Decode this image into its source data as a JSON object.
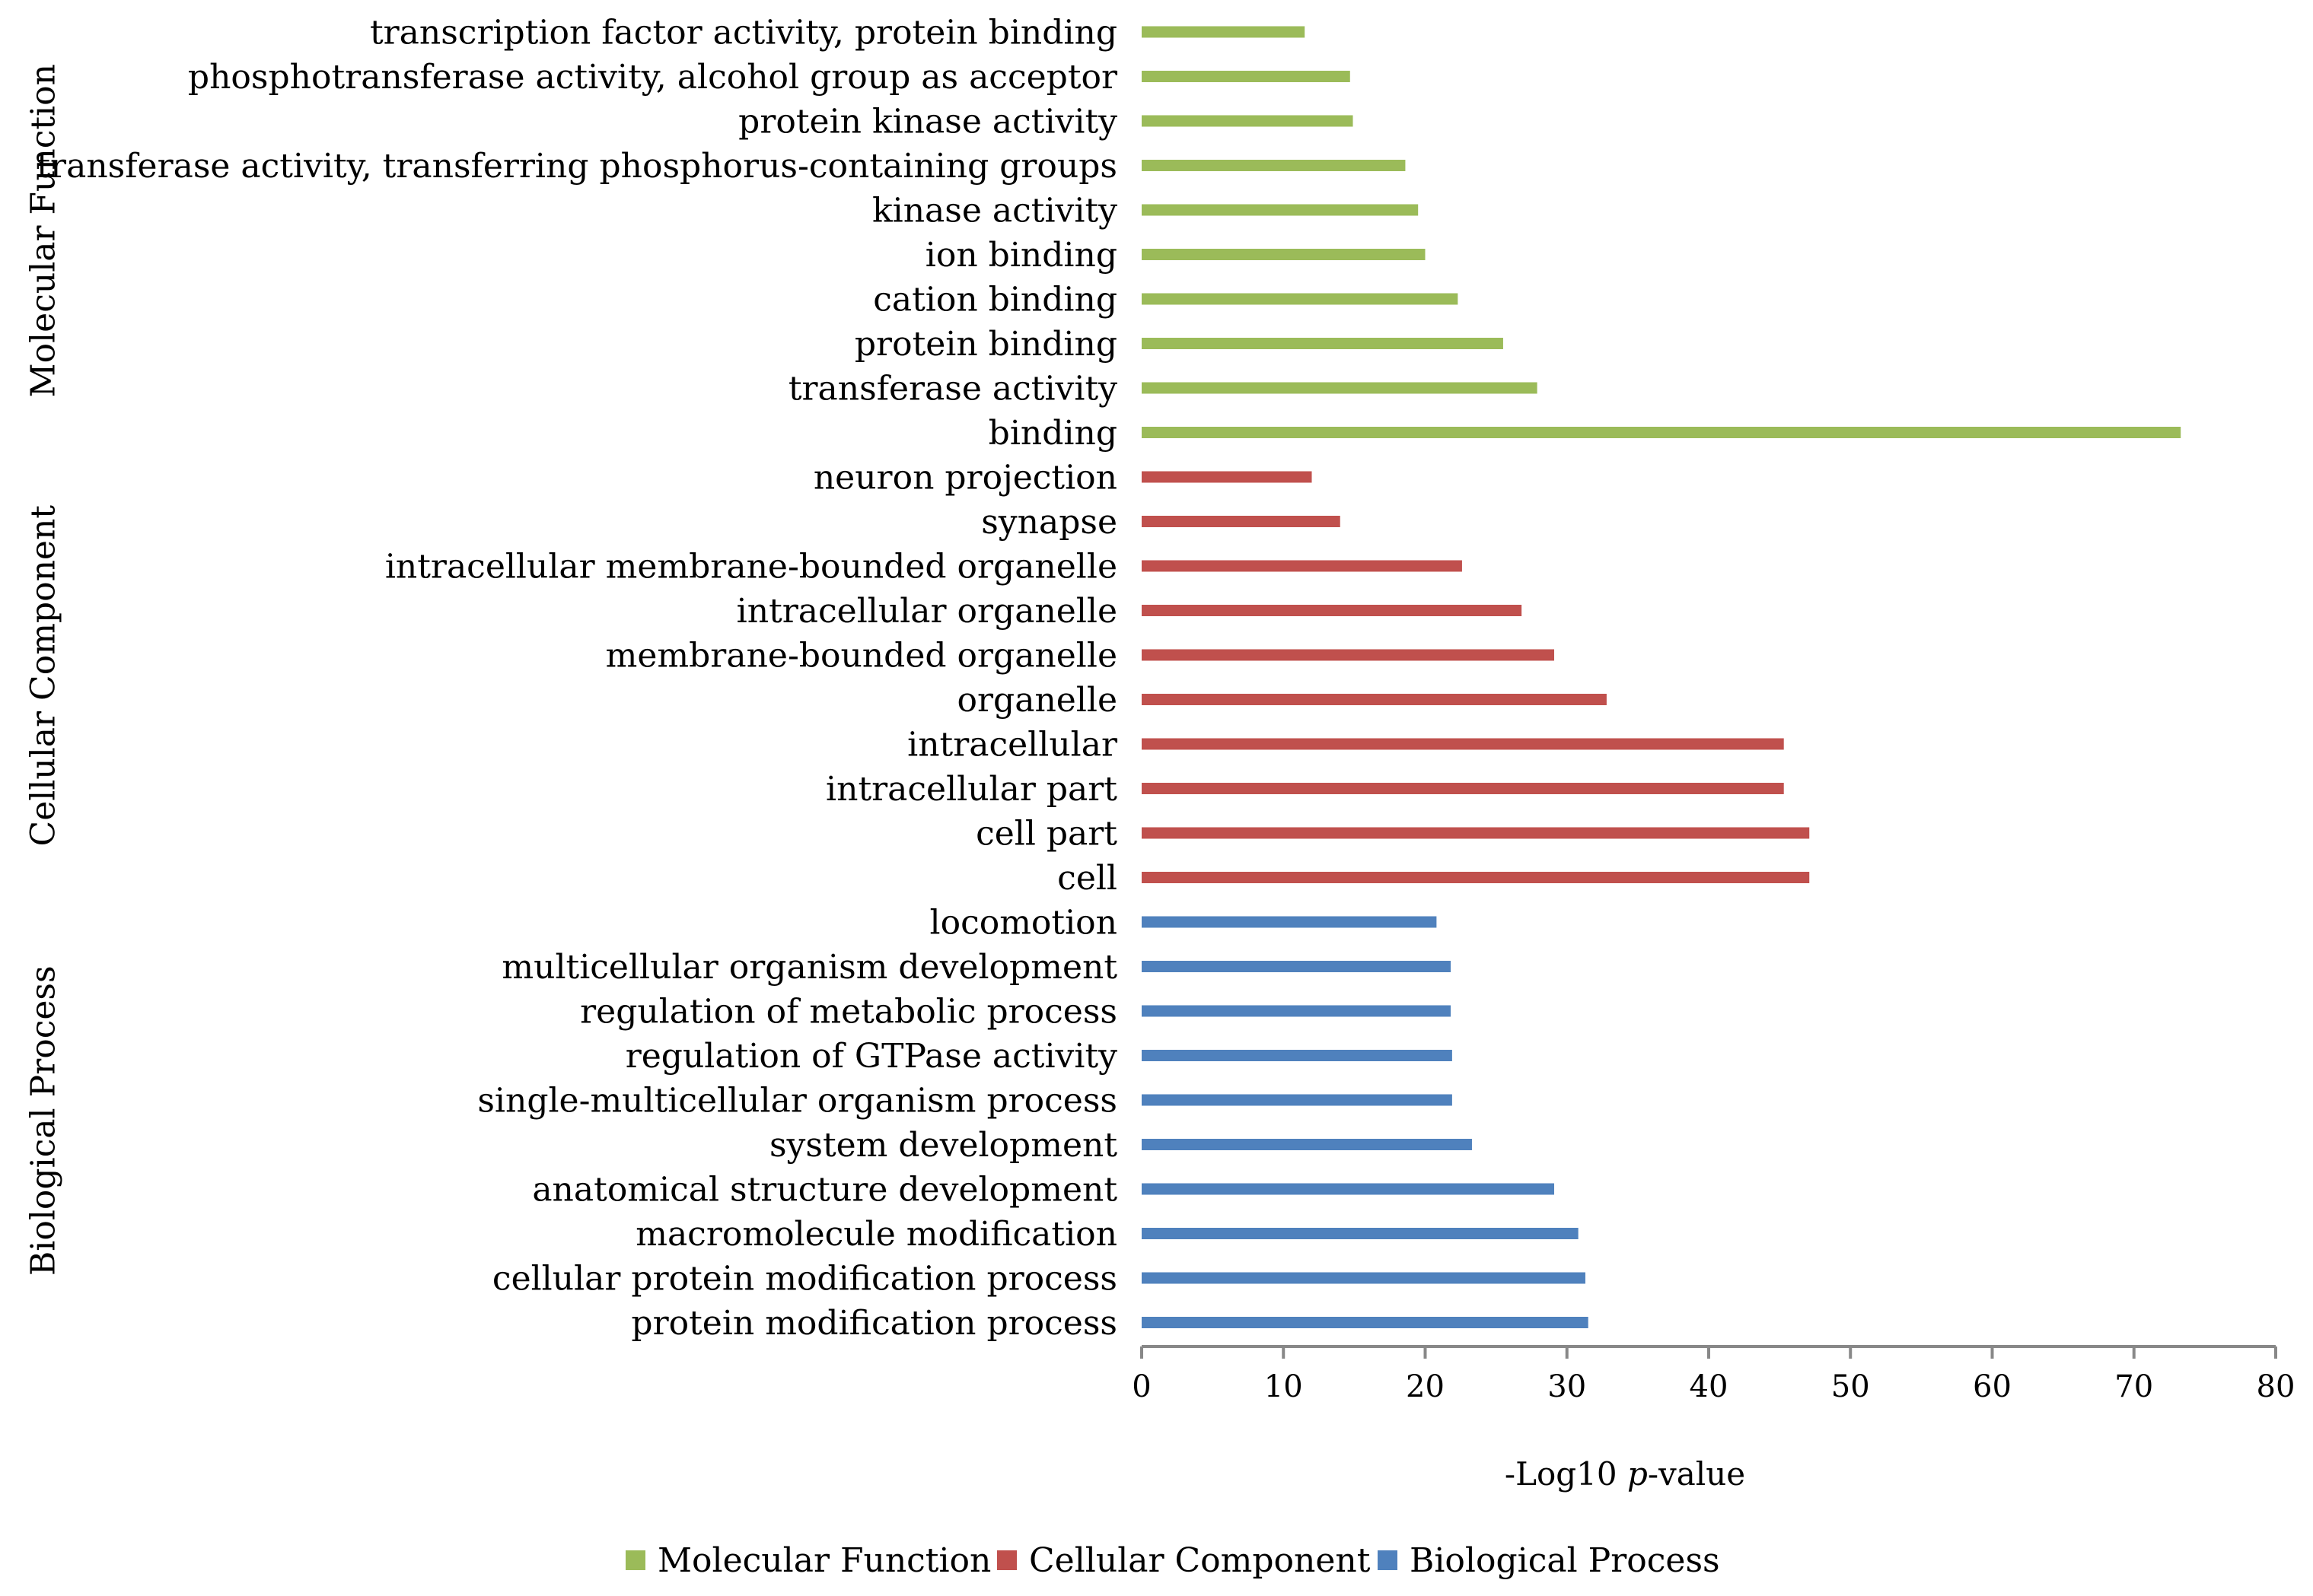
{
  "chart_data": {
    "type": "bar",
    "orientation": "horizontal",
    "xlabel_prefix": "-Log10 ",
    "xlabel_italic": "p",
    "xlabel_suffix": "-value",
    "xlim": [
      0,
      80
    ],
    "xticks": [
      0,
      10,
      20,
      30,
      40,
      50,
      60,
      70,
      80
    ],
    "grid": false,
    "legend_position": "bottom",
    "groups": [
      {
        "name": "Molecular Function",
        "color": "#9BBB59",
        "categories": [
          "transcription factor activity, protein binding",
          "phosphotransferase activity, alcohol group as acceptor",
          "protein kinase activity",
          "transferase activity, transferring phosphorus-containing groups",
          "kinase activity",
          "ion binding",
          "cation binding",
          "protein binding",
          "transferase activity",
          "binding"
        ],
        "values": [
          11.5,
          14.7,
          14.9,
          18.6,
          19.5,
          20.0,
          22.3,
          25.5,
          27.9,
          73.3
        ]
      },
      {
        "name": "Cellular Component",
        "color": "#C0504D",
        "categories": [
          "neuron projection",
          "synapse",
          "intracellular membrane-bounded organelle",
          "intracellular organelle",
          "membrane-bounded organelle",
          "organelle",
          "intracellular",
          "intracellular part",
          "cell part",
          "cell"
        ],
        "values": [
          12.0,
          14.0,
          22.6,
          26.8,
          29.1,
          32.8,
          45.3,
          45.3,
          47.1,
          47.1
        ]
      },
      {
        "name": "Biological Process",
        "color": "#4F81BD",
        "categories": [
          "locomotion",
          "multicellular organism development",
          "regulation of metabolic process",
          "regulation of GTPase activity",
          "single-multicellular organism process",
          "system development",
          "anatomical structure development",
          "macromolecule modification",
          "cellular protein modification process",
          "protein modification process"
        ],
        "values": [
          20.8,
          21.8,
          21.8,
          21.9,
          21.9,
          23.3,
          29.1,
          30.8,
          31.3,
          31.5
        ]
      }
    ]
  }
}
